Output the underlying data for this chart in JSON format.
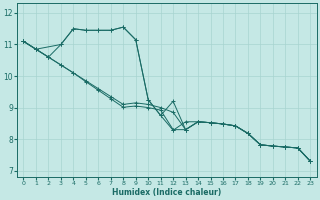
{
  "xlabel": "Humidex (Indice chaleur)",
  "xlim": [
    -0.5,
    23.5
  ],
  "ylim": [
    6.8,
    12.3
  ],
  "xticks": [
    0,
    1,
    2,
    3,
    4,
    5,
    6,
    7,
    8,
    9,
    10,
    11,
    12,
    13,
    14,
    15,
    16,
    17,
    18,
    19,
    20,
    21,
    22,
    23
  ],
  "yticks": [
    7,
    8,
    9,
    10,
    11,
    12
  ],
  "bg_color": "#c5e8e5",
  "grid_color": "#a8d4d0",
  "line_color": "#1a6b65",
  "series": [
    {
      "x": [
        0,
        1,
        2,
        3,
        4,
        5,
        6,
        7,
        8,
        9,
        10,
        11,
        12,
        13,
        14,
        15,
        16,
        17,
        18,
        19,
        20,
        21,
        22,
        23
      ],
      "y": [
        11.1,
        10.85,
        10.6,
        11.0,
        11.5,
        11.45,
        11.45,
        11.45,
        11.55,
        11.15,
        9.25,
        8.75,
        9.2,
        8.3,
        8.55,
        8.52,
        8.48,
        8.42,
        8.18,
        7.82,
        7.78,
        7.75,
        7.72,
        7.3
      ]
    },
    {
      "x": [
        0,
        1,
        2,
        3,
        4,
        5,
        6,
        7,
        8,
        9,
        10,
        11,
        12,
        13,
        14,
        15,
        16,
        17,
        18,
        19,
        20,
        21,
        22,
        23
      ],
      "y": [
        11.1,
        10.85,
        10.6,
        10.35,
        10.1,
        9.85,
        9.6,
        9.35,
        9.1,
        9.15,
        9.1,
        9.0,
        8.85,
        8.3,
        8.55,
        8.52,
        8.48,
        8.42,
        8.18,
        7.82,
        7.78,
        7.75,
        7.72,
        7.3
      ]
    },
    {
      "x": [
        0,
        1,
        2,
        3,
        4,
        5,
        6,
        7,
        8,
        9,
        10,
        11,
        12,
        13,
        14,
        15,
        16,
        17,
        18,
        19,
        20,
        21,
        22,
        23
      ],
      "y": [
        11.1,
        10.85,
        10.6,
        10.35,
        10.1,
        9.82,
        9.55,
        9.28,
        9.01,
        9.05,
        9.0,
        8.92,
        8.3,
        8.3,
        8.55,
        8.52,
        8.48,
        8.42,
        8.18,
        7.82,
        7.78,
        7.75,
        7.72,
        7.3
      ]
    },
    {
      "x": [
        0,
        1,
        3,
        4,
        5,
        6,
        7,
        8,
        9,
        10,
        11,
        12,
        13,
        14,
        15,
        16,
        17,
        18,
        19,
        20,
        21,
        22,
        23
      ],
      "y": [
        11.1,
        10.85,
        11.0,
        11.5,
        11.45,
        11.45,
        11.45,
        11.55,
        11.15,
        9.25,
        8.75,
        8.28,
        8.55,
        8.55,
        8.52,
        8.48,
        8.42,
        8.18,
        7.82,
        7.78,
        7.75,
        7.72,
        7.3
      ]
    }
  ]
}
